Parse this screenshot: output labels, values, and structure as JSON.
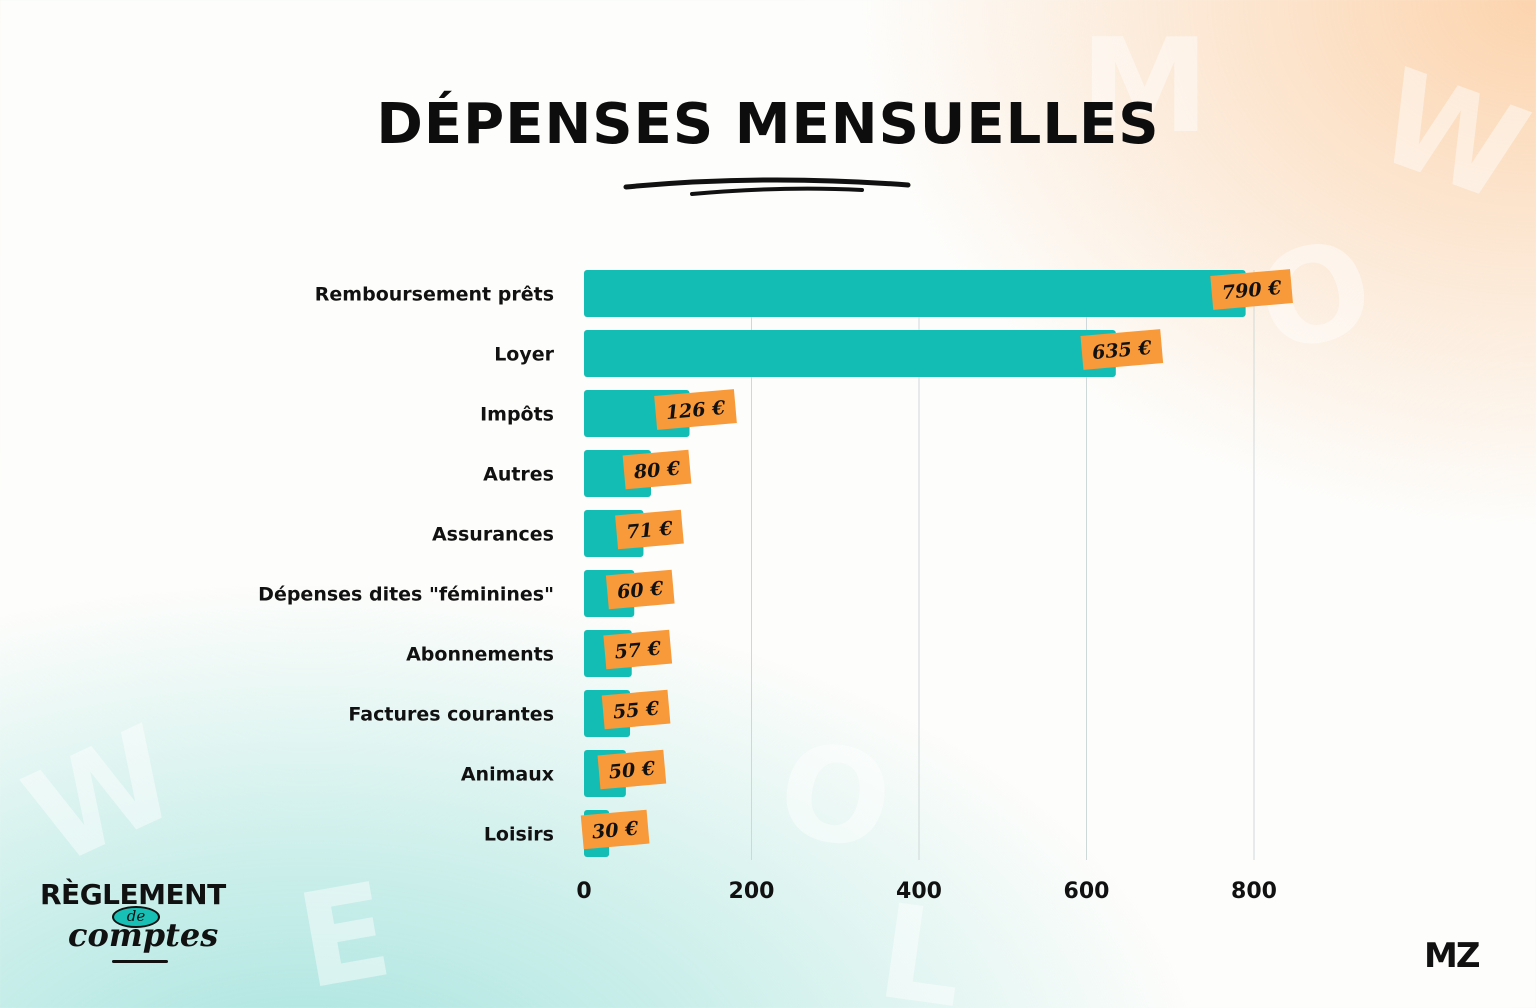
{
  "title": "DÉPENSES MENSUELLES",
  "logo": {
    "line1": "RÈGLEMENT",
    "line2": "de",
    "line3": "comptes"
  },
  "brand": "MZ",
  "colors": {
    "bar": "#14bdb3",
    "label_bg": "#f8993a",
    "text": "#111111"
  },
  "chart_data": {
    "type": "bar",
    "orientation": "horizontal",
    "categories": [
      "Remboursement prêts",
      "Loyer",
      "Impôts",
      "Autres",
      "Assurances",
      "Dépenses dites \"féminines\"",
      "Abonnements",
      "Factures courantes",
      "Animaux",
      "Loisirs"
    ],
    "values": [
      790,
      635,
      126,
      80,
      71,
      60,
      57,
      55,
      50,
      30
    ],
    "value_labels": [
      "790 €",
      "635 €",
      "126 €",
      "80 €",
      "71 €",
      "60 €",
      "57 €",
      "55 €",
      "50 €",
      "30 €"
    ],
    "x_ticks": [
      0,
      200,
      400,
      600,
      800
    ],
    "x_tick_labels": [
      "0",
      "200",
      "400",
      "600",
      "800"
    ],
    "xlim": [
      0,
      800
    ],
    "grid": "vertical"
  }
}
